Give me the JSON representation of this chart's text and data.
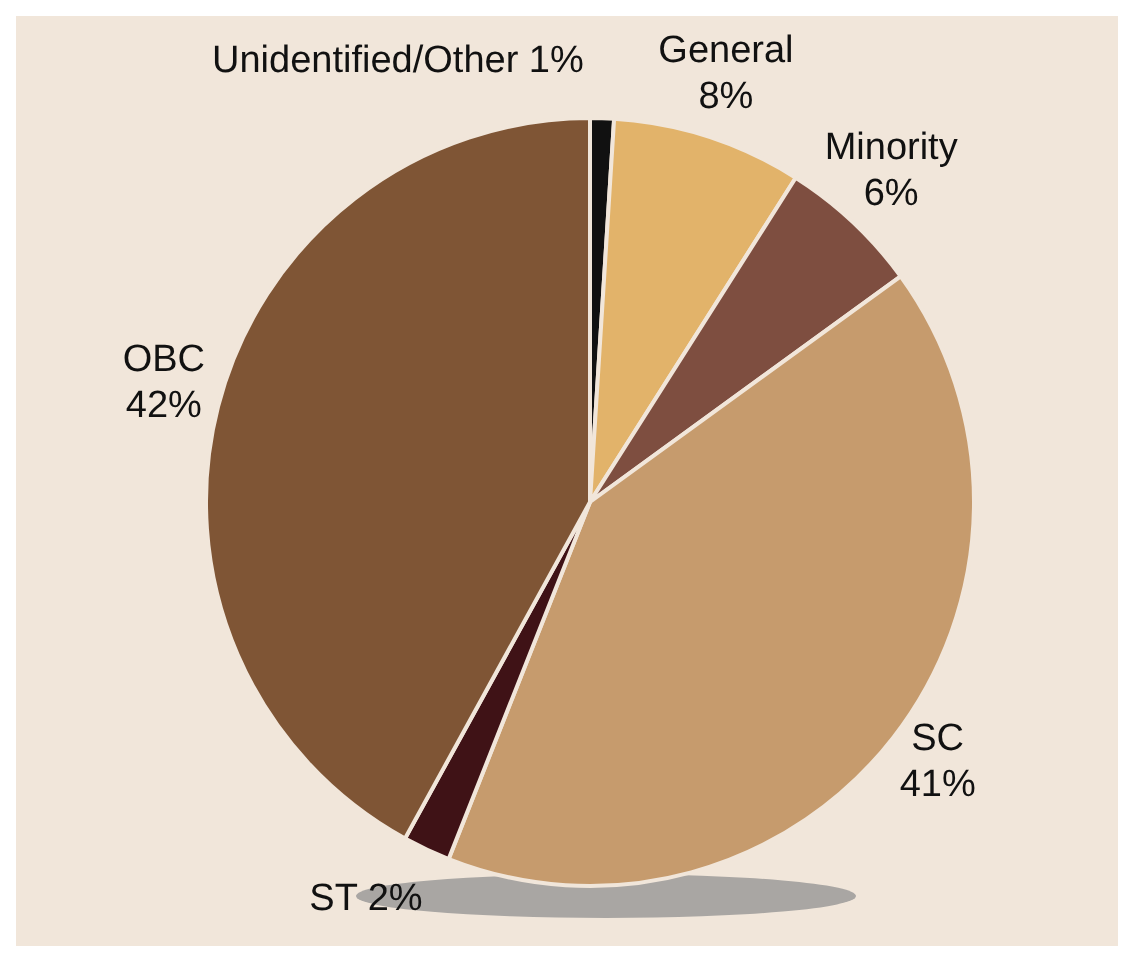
{
  "chart_data": {
    "type": "pie",
    "categories": [
      "Unidentified/Other",
      "General",
      "Minority",
      "SC",
      "ST",
      "OBC"
    ],
    "values": [
      1,
      8,
      6,
      41,
      2,
      42
    ],
    "colors": [
      "#111111",
      "#e2b36a",
      "#7e4e40",
      "#c69b6d",
      "#3f1216",
      "#7f5535"
    ],
    "value_labels": [
      "1%",
      "8%",
      "6%",
      "41%",
      "2%",
      "42%"
    ],
    "legend": false
  }
}
